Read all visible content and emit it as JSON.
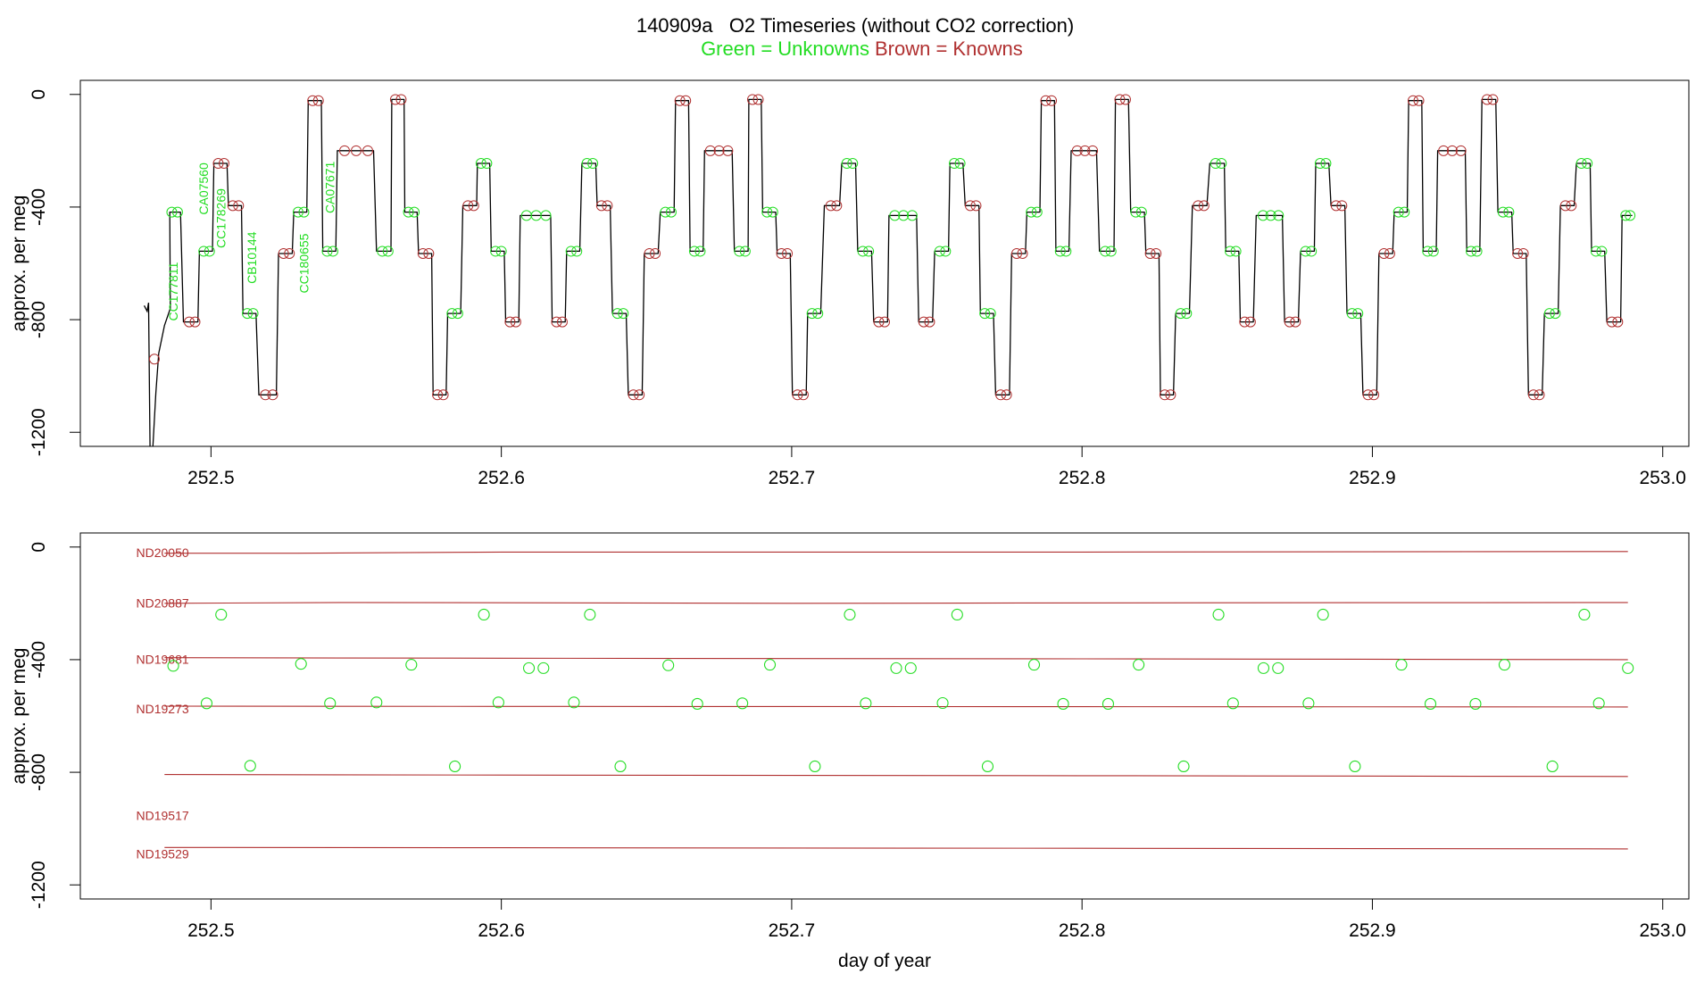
{
  "header": {
    "title": "140909a   O2 Timeseries (without CO2 correction)",
    "legend_unknowns": "Green = Unknowns",
    "legend_knowns": "Brown = Knowns"
  },
  "colors": {
    "unknown": "#22dd22",
    "known": "#b03030",
    "trace": "#000000"
  },
  "chart_data": [
    {
      "type": "line",
      "panel": "top",
      "title": "140909a   O2 Timeseries (without CO2 correction)",
      "xlabel": "",
      "ylabel": "approx. per meg",
      "xlim": [
        252.455,
        253.009
      ],
      "ylim": [
        -1250,
        50
      ],
      "xticks": [
        252.5,
        252.6,
        252.7,
        252.8,
        252.9,
        253.0
      ],
      "xtick_labels": [
        "252.5",
        "252.6",
        "252.7",
        "252.8",
        "252.9",
        "253.0"
      ],
      "yticks": [
        0,
        -400,
        -800,
        -1200
      ],
      "ytick_labels": [
        "0",
        "-400",
        "-800",
        "-1200"
      ],
      "grid": false,
      "start_trace": [
        [
          252.477,
          -750
        ],
        [
          252.478,
          -770
        ],
        [
          252.4785,
          -740
        ],
        [
          252.479,
          -1250
        ]
      ],
      "recovery": [
        [
          252.48,
          -1250
        ],
        [
          252.481,
          -1060
        ],
        [
          252.482,
          -920
        ],
        [
          252.484,
          -820
        ],
        [
          252.486,
          -760
        ]
      ],
      "plateaus": [
        [
          252.4855,
          252.4895,
          -418,
          "u"
        ],
        [
          252.4915,
          252.4955,
          -808,
          "k"
        ],
        [
          252.4965,
          252.5005,
          -557,
          "u"
        ],
        [
          252.5015,
          252.5055,
          -245,
          "k"
        ],
        [
          252.5065,
          252.5105,
          -395,
          "k"
        ],
        [
          252.5115,
          252.5155,
          -778,
          "u"
        ],
        [
          252.5175,
          252.5225,
          -1067,
          "k"
        ],
        [
          252.524,
          252.528,
          -565,
          "k"
        ],
        [
          252.529,
          252.533,
          -418,
          "u"
        ],
        [
          252.534,
          252.538,
          -22,
          "k"
        ],
        [
          252.539,
          252.543,
          -557,
          "u"
        ],
        [
          252.544,
          252.556,
          -200,
          "k"
        ],
        [
          252.558,
          252.562,
          -557,
          "u"
        ],
        [
          252.5625,
          252.5665,
          -18,
          "k"
        ],
        [
          252.567,
          252.571,
          -418,
          "u"
        ],
        [
          252.572,
          252.576,
          -565,
          "k"
        ],
        [
          252.577,
          252.581,
          -1067,
          "k"
        ],
        [
          252.582,
          252.586,
          -778,
          "u"
        ],
        [
          252.5875,
          252.5915,
          -395,
          "k"
        ],
        [
          252.592,
          252.596,
          -245,
          "u"
        ],
        [
          252.597,
          252.601,
          -557,
          "u"
        ],
        [
          252.602,
          252.606,
          -808,
          "k"
        ],
        [
          252.607,
          252.617,
          -430,
          "u"
        ],
        [
          252.618,
          252.622,
          -808,
          "k"
        ],
        [
          252.623,
          252.627,
          -557,
          "u"
        ],
        [
          252.6285,
          252.6325,
          -245,
          "u"
        ],
        [
          252.6335,
          252.6375,
          -395,
          "k"
        ],
        [
          252.639,
          252.643,
          -778,
          "u"
        ],
        [
          252.6445,
          252.6485,
          -1067,
          "k"
        ],
        [
          252.65,
          252.654,
          -565,
          "k"
        ],
        [
          252.6555,
          252.6595,
          -418,
          "u"
        ],
        [
          252.6605,
          252.6645,
          -22,
          "k"
        ],
        [
          252.6655,
          252.6695,
          -557,
          "u"
        ],
        [
          252.6705,
          252.6795,
          -200,
          "k"
        ],
        [
          252.681,
          252.685,
          -557,
          "u"
        ],
        [
          252.6855,
          252.6895,
          -18,
          "k"
        ],
        [
          252.6905,
          252.6945,
          -418,
          "u"
        ],
        [
          252.6955,
          252.6995,
          -565,
          "k"
        ],
        [
          252.701,
          252.705,
          -1067,
          "k"
        ],
        [
          252.706,
          252.71,
          -778,
          "u"
        ],
        [
          252.7125,
          252.7165,
          -395,
          "k"
        ],
        [
          252.718,
          252.722,
          -245,
          "u"
        ],
        [
          252.7235,
          252.7275,
          -557,
          "u"
        ],
        [
          252.729,
          252.733,
          -808,
          "k"
        ],
        [
          252.734,
          252.743,
          -430,
          "u"
        ],
        [
          252.7445,
          252.7485,
          -808,
          "k"
        ],
        [
          252.75,
          252.754,
          -557,
          "u"
        ],
        [
          252.755,
          252.759,
          -245,
          "u"
        ],
        [
          252.7605,
          252.7645,
          -395,
          "k"
        ],
        [
          252.7655,
          252.7695,
          -778,
          "u"
        ],
        [
          252.771,
          252.775,
          -1067,
          "k"
        ],
        [
          252.7765,
          252.7805,
          -565,
          "k"
        ],
        [
          252.7815,
          252.7855,
          -418,
          "u"
        ],
        [
          252.7865,
          252.7905,
          -22,
          "k"
        ],
        [
          252.7915,
          252.7955,
          -557,
          "u"
        ],
        [
          252.797,
          252.805,
          -200,
          "k"
        ],
        [
          252.807,
          252.811,
          -557,
          "u"
        ],
        [
          252.812,
          252.816,
          -18,
          "k"
        ],
        [
          252.8175,
          252.8215,
          -418,
          "u"
        ],
        [
          252.8225,
          252.8265,
          -565,
          "k"
        ],
        [
          252.8275,
          252.8315,
          -1067,
          "k"
        ],
        [
          252.833,
          252.837,
          -778,
          "u"
        ],
        [
          252.839,
          252.843,
          -395,
          "k"
        ],
        [
          252.845,
          252.849,
          -245,
          "u"
        ],
        [
          252.85,
          252.854,
          -557,
          "u"
        ],
        [
          252.855,
          252.859,
          -808,
          "k"
        ],
        [
          252.861,
          252.869,
          -430,
          "u"
        ],
        [
          252.8705,
          252.8745,
          -808,
          "k"
        ],
        [
          252.876,
          252.88,
          -557,
          "u"
        ],
        [
          252.881,
          252.885,
          -245,
          "u"
        ],
        [
          252.8865,
          252.8905,
          -395,
          "k"
        ],
        [
          252.892,
          252.896,
          -778,
          "u"
        ],
        [
          252.8975,
          252.9015,
          -1067,
          "k"
        ],
        [
          252.903,
          252.907,
          -565,
          "k"
        ],
        [
          252.908,
          252.912,
          -418,
          "u"
        ],
        [
          252.913,
          252.917,
          -22,
          "k"
        ],
        [
          252.918,
          252.922,
          -557,
          "u"
        ],
        [
          252.923,
          252.932,
          -200,
          "k"
        ],
        [
          252.933,
          252.937,
          -557,
          "u"
        ],
        [
          252.9385,
          252.9425,
          -18,
          "k"
        ],
        [
          252.944,
          252.948,
          -418,
          "u"
        ],
        [
          252.949,
          252.953,
          -565,
          "k"
        ],
        [
          252.9545,
          252.9585,
          -1067,
          "k"
        ],
        [
          252.96,
          252.964,
          -778,
          "u"
        ],
        [
          252.9655,
          252.9695,
          -395,
          "k"
        ],
        [
          252.971,
          252.975,
          -245,
          "u"
        ],
        [
          252.976,
          252.98,
          -557,
          "u"
        ],
        [
          252.9815,
          252.9855,
          -808,
          "k"
        ],
        [
          252.9865,
          252.9895,
          -430,
          "u"
        ]
      ],
      "unknown_points": [
        [
          252.487,
          -422
        ],
        [
          252.4985,
          -555
        ],
        [
          252.5035,
          -240
        ],
        [
          252.5135,
          -777
        ],
        [
          252.531,
          -415
        ],
        [
          252.541,
          -555
        ],
        [
          252.557,
          -552
        ],
        [
          252.569,
          -418
        ],
        [
          252.584,
          -779
        ],
        [
          252.594,
          -240
        ],
        [
          252.599,
          -552
        ],
        [
          252.6095,
          -430
        ],
        [
          252.6145,
          -430
        ],
        [
          252.625,
          -552
        ],
        [
          252.6305,
          -240
        ],
        [
          252.641,
          -779
        ],
        [
          252.6575,
          -420
        ],
        [
          252.6675,
          -557
        ],
        [
          252.683,
          -555
        ],
        [
          252.6925,
          -418
        ],
        [
          252.708,
          -779
        ],
        [
          252.72,
          -240
        ],
        [
          252.7255,
          -555
        ],
        [
          252.736,
          -430
        ],
        [
          252.741,
          -430
        ],
        [
          252.752,
          -554
        ],
        [
          252.757,
          -240
        ],
        [
          252.7675,
          -779
        ],
        [
          252.7835,
          -418
        ],
        [
          252.7935,
          -557
        ],
        [
          252.809,
          -557
        ],
        [
          252.8195,
          -418
        ],
        [
          252.835,
          -779
        ],
        [
          252.847,
          -240
        ],
        [
          252.852,
          -555
        ],
        [
          252.8625,
          -430
        ],
        [
          252.8675,
          -430
        ],
        [
          252.878,
          -555
        ],
        [
          252.883,
          -240
        ],
        [
          252.894,
          -779
        ],
        [
          252.91,
          -418
        ],
        [
          252.92,
          -557
        ],
        [
          252.9355,
          -557
        ],
        [
          252.9455,
          -418
        ],
        [
          252.962,
          -779
        ],
        [
          252.973,
          -240
        ],
        [
          252.978,
          -555
        ],
        [
          252.988,
          -430
        ]
      ],
      "known_points": [
        [
          252.4805,
          -940
        ]
      ],
      "annotations": [
        {
          "text": "CC177811",
          "x": 252.4885,
          "y": -700
        },
        {
          "text": "CA07560",
          "x": 252.499,
          "y": -335
        },
        {
          "text": "CC178269",
          "x": 252.505,
          "y": -440
        },
        {
          "text": "CB10144",
          "x": 252.5155,
          "y": -580
        },
        {
          "text": "CC180655",
          "x": 252.5335,
          "y": -600
        },
        {
          "text": "CA07671",
          "x": 252.5425,
          "y": -330
        }
      ]
    },
    {
      "type": "scatter",
      "panel": "bottom",
      "xlabel": "day of year",
      "ylabel": "approx. per meg",
      "xlim": [
        252.455,
        253.009
      ],
      "ylim": [
        -1250,
        50
      ],
      "xticks": [
        252.5,
        252.6,
        252.7,
        252.8,
        252.9,
        253.0
      ],
      "xtick_labels": [
        "252.5",
        "252.6",
        "252.7",
        "252.8",
        "252.9",
        "253.0"
      ],
      "yticks": [
        0,
        -400,
        -800,
        -1200
      ],
      "ytick_labels": [
        "0",
        "-400",
        "-800",
        "-1200"
      ],
      "grid": false,
      "known_lines": [
        {
          "x": [
            252.484,
            252.53,
            252.6,
            252.8,
            252.988
          ],
          "y": [
            -22,
            -22,
            -18,
            -18,
            -16
          ]
        },
        {
          "x": [
            252.484,
            252.55,
            252.7,
            252.85,
            252.988
          ],
          "y": [
            -200,
            -197,
            -200,
            -198,
            -197
          ]
        },
        {
          "x": [
            252.484,
            252.6,
            252.8,
            252.988
          ],
          "y": [
            -393,
            -395,
            -397,
            -400
          ]
        },
        {
          "x": [
            252.484,
            252.6,
            252.8,
            252.988
          ],
          "y": [
            -565,
            -566,
            -567,
            -568
          ]
        },
        {
          "x": [
            252.484,
            252.6,
            252.8,
            252.988
          ],
          "y": [
            -808,
            -810,
            -812,
            -815
          ]
        },
        {
          "x": [
            252.484,
            252.6,
            252.8,
            252.988
          ],
          "y": [
            -1067,
            -1068,
            -1070,
            -1072
          ]
        }
      ],
      "known_labels": [
        {
          "text": "ND20050",
          "x": 252.465,
          "y": -35
        },
        {
          "text": "ND20887",
          "x": 252.465,
          "y": -215
        },
        {
          "text": "ND19681",
          "x": 252.465,
          "y": -415
        },
        {
          "text": "ND19273",
          "x": 252.465,
          "y": -590
        },
        {
          "text": "ND19517",
          "x": 252.465,
          "y": -970
        },
        {
          "text": "ND19529",
          "x": 252.465,
          "y": -1105
        }
      ],
      "unknown_points": [
        [
          252.487,
          -422
        ],
        [
          252.4985,
          -555
        ],
        [
          252.5035,
          -240
        ],
        [
          252.5135,
          -777
        ],
        [
          252.531,
          -415
        ],
        [
          252.541,
          -555
        ],
        [
          252.557,
          -552
        ],
        [
          252.569,
          -418
        ],
        [
          252.584,
          -779
        ],
        [
          252.594,
          -240
        ],
        [
          252.599,
          -552
        ],
        [
          252.6095,
          -430
        ],
        [
          252.6145,
          -430
        ],
        [
          252.625,
          -552
        ],
        [
          252.6305,
          -240
        ],
        [
          252.641,
          -779
        ],
        [
          252.6575,
          -420
        ],
        [
          252.6675,
          -557
        ],
        [
          252.683,
          -555
        ],
        [
          252.6925,
          -418
        ],
        [
          252.708,
          -779
        ],
        [
          252.72,
          -240
        ],
        [
          252.7255,
          -555
        ],
        [
          252.736,
          -430
        ],
        [
          252.741,
          -430
        ],
        [
          252.752,
          -554
        ],
        [
          252.757,
          -240
        ],
        [
          252.7675,
          -779
        ],
        [
          252.7835,
          -418
        ],
        [
          252.7935,
          -557
        ],
        [
          252.809,
          -557
        ],
        [
          252.8195,
          -418
        ],
        [
          252.835,
          -779
        ],
        [
          252.847,
          -240
        ],
        [
          252.852,
          -555
        ],
        [
          252.8625,
          -430
        ],
        [
          252.8675,
          -430
        ],
        [
          252.878,
          -555
        ],
        [
          252.883,
          -240
        ],
        [
          252.894,
          -779
        ],
        [
          252.91,
          -418
        ],
        [
          252.92,
          -557
        ],
        [
          252.9355,
          -557
        ],
        [
          252.9455,
          -418
        ],
        [
          252.962,
          -779
        ],
        [
          252.973,
          -240
        ],
        [
          252.978,
          -555
        ],
        [
          252.988,
          -430
        ]
      ]
    }
  ]
}
